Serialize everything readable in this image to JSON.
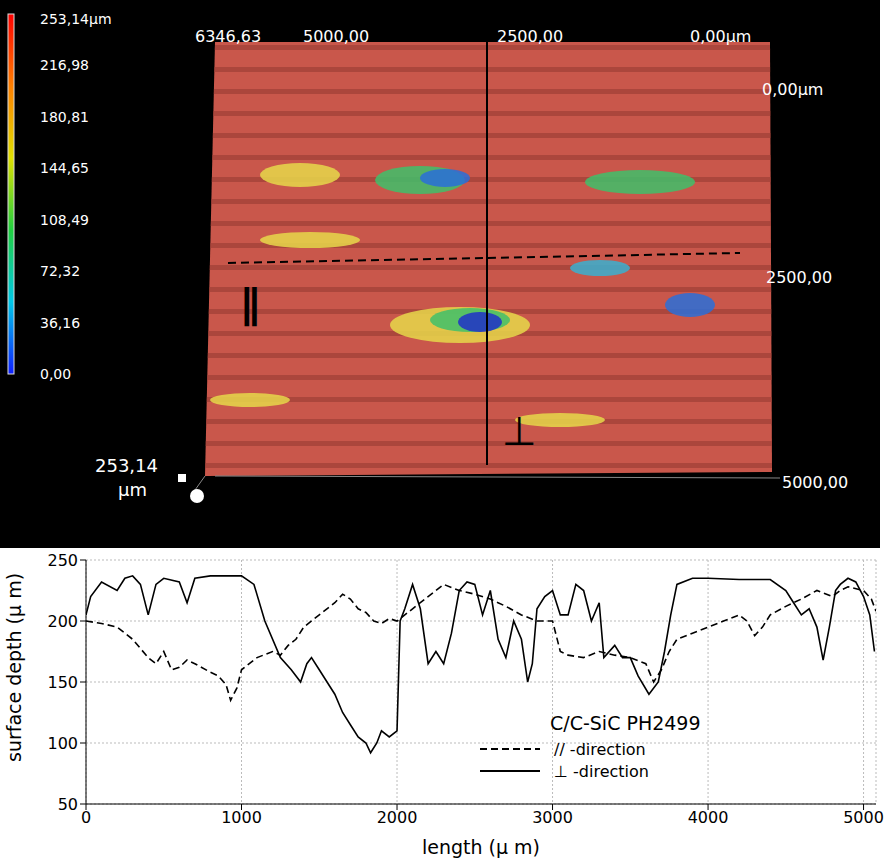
{
  "surface_image": {
    "colorbar": {
      "range": [
        0,
        253.14
      ],
      "ticks": [
        {
          "value": 253.14,
          "label": "253,14µm"
        },
        {
          "value": 216.98,
          "label": "216,98"
        },
        {
          "value": 180.81,
          "label": "180,81"
        },
        {
          "value": 144.65,
          "label": "144,65"
        },
        {
          "value": 108.49,
          "label": "108,49"
        },
        {
          "value": 72.32,
          "label": "72,32"
        },
        {
          "value": 36.16,
          "label": "36,16"
        },
        {
          "value": 0,
          "label": "0,00"
        }
      ]
    },
    "x_axis_labels": [
      "6346,63",
      "5000,00",
      "2500,00",
      "0,00µm"
    ],
    "y_axis_labels": [
      "0,00µm",
      "2500,00",
      "5000,00"
    ],
    "z_axis_label": [
      "253,14",
      "µm"
    ],
    "profile_marks": {
      "parallel": "∥",
      "perpendicular": "⊥"
    }
  },
  "chart_data": {
    "type": "line",
    "title": "C/C-SiC PH2499",
    "x_label": "length  (μ m)",
    "y_label": "surface depth (μ m)",
    "xlim": [
      0,
      5080
    ],
    "xticks": [
      0,
      1000,
      2000,
      3000,
      4000,
      5000
    ],
    "ylim": [
      50,
      250
    ],
    "yticks": [
      50,
      100,
      150,
      200,
      250
    ],
    "grid": true,
    "legend": "lower right",
    "series": [
      {
        "name": "// -direction",
        "color": "#000000",
        "line_style": "dashed",
        "x": [
          0,
          100,
          200,
          300,
          400,
          450,
          500,
          550,
          600,
          650,
          700,
          800,
          850,
          900,
          930,
          970,
          1000,
          1100,
          1200,
          1250,
          1300,
          1350,
          1400,
          1500,
          1600,
          1650,
          1700,
          1750,
          1800,
          1850,
          1900,
          1950,
          2000,
          2100,
          2200,
          2300,
          2400,
          2500,
          2600,
          2700,
          2800,
          2900,
          3000,
          3050,
          3100,
          3200,
          3300,
          3400,
          3500,
          3600,
          3650,
          3700,
          3750,
          3800,
          3900,
          4000,
          4100,
          4200,
          4250,
          4300,
          4350,
          4400,
          4500,
          4600,
          4700,
          4800,
          4850,
          4900,
          5000,
          5050,
          5080
        ],
        "values": [
          200,
          198,
          195,
          185,
          170,
          165,
          175,
          160,
          162,
          168,
          165,
          158,
          155,
          148,
          135,
          145,
          160,
          170,
          175,
          172,
          180,
          185,
          195,
          205,
          215,
          222,
          218,
          210,
          207,
          200,
          198,
          202,
          200,
          210,
          220,
          230,
          225,
          222,
          218,
          212,
          205,
          200,
          200,
          175,
          172,
          170,
          175,
          172,
          170,
          165,
          150,
          160,
          175,
          185,
          190,
          195,
          200,
          205,
          200,
          188,
          195,
          205,
          212,
          218,
          225,
          220,
          225,
          228,
          225,
          218,
          208
        ]
      },
      {
        "name": "⊥ -direction",
        "color": "#000000",
        "line_style": "solid",
        "x": [
          0,
          30,
          100,
          200,
          250,
          300,
          350,
          400,
          450,
          500,
          600,
          650,
          700,
          800,
          1000,
          1080,
          1150,
          1250,
          1320,
          1380,
          1420,
          1450,
          1500,
          1550,
          1600,
          1650,
          1700,
          1750,
          1800,
          1830,
          1870,
          1900,
          1950,
          2000,
          2020,
          2050,
          2100,
          2150,
          2200,
          2250,
          2300,
          2350,
          2400,
          2450,
          2500,
          2550,
          2600,
          2650,
          2700,
          2750,
          2800,
          2840,
          2870,
          2900,
          2950,
          3000,
          3050,
          3100,
          3150,
          3200,
          3250,
          3300,
          3330,
          3400,
          3450,
          3500,
          3550,
          3620,
          3680,
          3720,
          3760,
          3800,
          3900,
          4000,
          4200,
          4400,
          4500,
          4550,
          4600,
          4650,
          4700,
          4740,
          4780,
          4820,
          4850,
          4900,
          4950,
          5000,
          5040,
          5070
        ],
        "values": [
          205,
          220,
          232,
          225,
          235,
          237,
          230,
          205,
          230,
          235,
          232,
          215,
          235,
          237,
          237,
          230,
          200,
          170,
          160,
          150,
          165,
          170,
          160,
          150,
          140,
          125,
          115,
          105,
          100,
          92,
          100,
          110,
          105,
          110,
          200,
          210,
          230,
          210,
          165,
          175,
          165,
          190,
          225,
          232,
          230,
          205,
          225,
          185,
          170,
          200,
          185,
          150,
          165,
          210,
          220,
          225,
          205,
          205,
          230,
          225,
          200,
          215,
          170,
          180,
          170,
          170,
          155,
          140,
          150,
          175,
          205,
          230,
          235,
          235,
          234,
          234,
          225,
          215,
          205,
          210,
          195,
          168,
          195,
          225,
          230,
          235,
          232,
          220,
          205,
          175
        ]
      }
    ]
  }
}
